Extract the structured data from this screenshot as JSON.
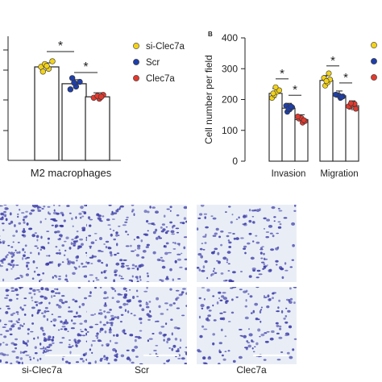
{
  "chart_data": [
    {
      "type": "bar",
      "title": "",
      "xlabel": "M2 macrophages",
      "ylabel": "",
      "legend_position": "right",
      "series": [
        {
          "name": "si-Clec7a",
          "color": "#f2d21b",
          "values": [
            100
          ],
          "points": [
            [
              100,
              103,
              98,
              106,
              95,
              101
            ]
          ]
        },
        {
          "name": "Scr",
          "color": "#1f3fa8",
          "values": [
            82
          ],
          "points": [
            [
              88,
              79,
              84,
              76,
              83
            ]
          ]
        },
        {
          "name": "Clec7a",
          "color": "#e03a2f",
          "values": [
            68
          ],
          "points": [
            [
              66,
              70,
              67,
              69,
              68
            ]
          ]
        }
      ],
      "categories": [
        "M2 macrophages"
      ],
      "significance": [
        {
          "between": [
            "si-Clec7a",
            "Scr"
          ],
          "label": "*"
        },
        {
          "between": [
            "Scr",
            "Clec7a"
          ],
          "label": "*"
        }
      ]
    },
    {
      "type": "bar",
      "panel_label": "B",
      "title": "",
      "xlabel": "",
      "ylabel": "Cell number per field",
      "ylim": [
        0,
        400
      ],
      "yticks": [
        0,
        100,
        200,
        300,
        400
      ],
      "categories": [
        "Invasion",
        "Migration"
      ],
      "series": [
        {
          "name": "si-Clec7a",
          "color": "#f2d21b",
          "values": [
            220,
            262
          ],
          "points": [
            [
              205,
              215,
              225,
              230,
              220,
              240
            ],
            [
              245,
              255,
              265,
              270,
              260,
              285
            ]
          ]
        },
        {
          "name": "Scr",
          "color": "#1f3fa8",
          "values": [
            172,
            212
          ],
          "points": [
            [
              160,
              168,
              175,
              180,
              170,
              178
            ],
            [
              205,
              210,
              215,
              212,
              208,
              216
            ]
          ]
        },
        {
          "name": "Clec7a",
          "color": "#e03a2f",
          "values": [
            135,
            180
          ],
          "points": [
            [
              125,
              130,
              138,
              140,
              133,
              145
            ],
            [
              170,
              176,
              183,
              186,
              178,
              188
            ]
          ]
        }
      ],
      "significance": [
        {
          "category": "Invasion",
          "between": [
            "si-Clec7a",
            "Scr"
          ],
          "label": "*"
        },
        {
          "category": "Invasion",
          "between": [
            "Scr",
            "Clec7a"
          ],
          "label": "*"
        },
        {
          "category": "Migration",
          "between": [
            "si-Clec7a",
            "Scr"
          ],
          "label": "*"
        },
        {
          "category": "Migration",
          "between": [
            "Scr",
            "Clec7a"
          ],
          "label": "*"
        }
      ]
    }
  ],
  "legend": {
    "items": [
      {
        "label": "si-Clec7a",
        "color": "#f2d21b"
      },
      {
        "label": "Scr",
        "color": "#1f3fa8"
      },
      {
        "label": "Clec7a",
        "color": "#e03a2f"
      }
    ]
  },
  "micrographs": {
    "stain_color": "#3f3fa8",
    "background": "#e9eef6",
    "columns": [
      "si-Clec7a",
      "Scr",
      "Clec7a"
    ],
    "rows": 2
  }
}
